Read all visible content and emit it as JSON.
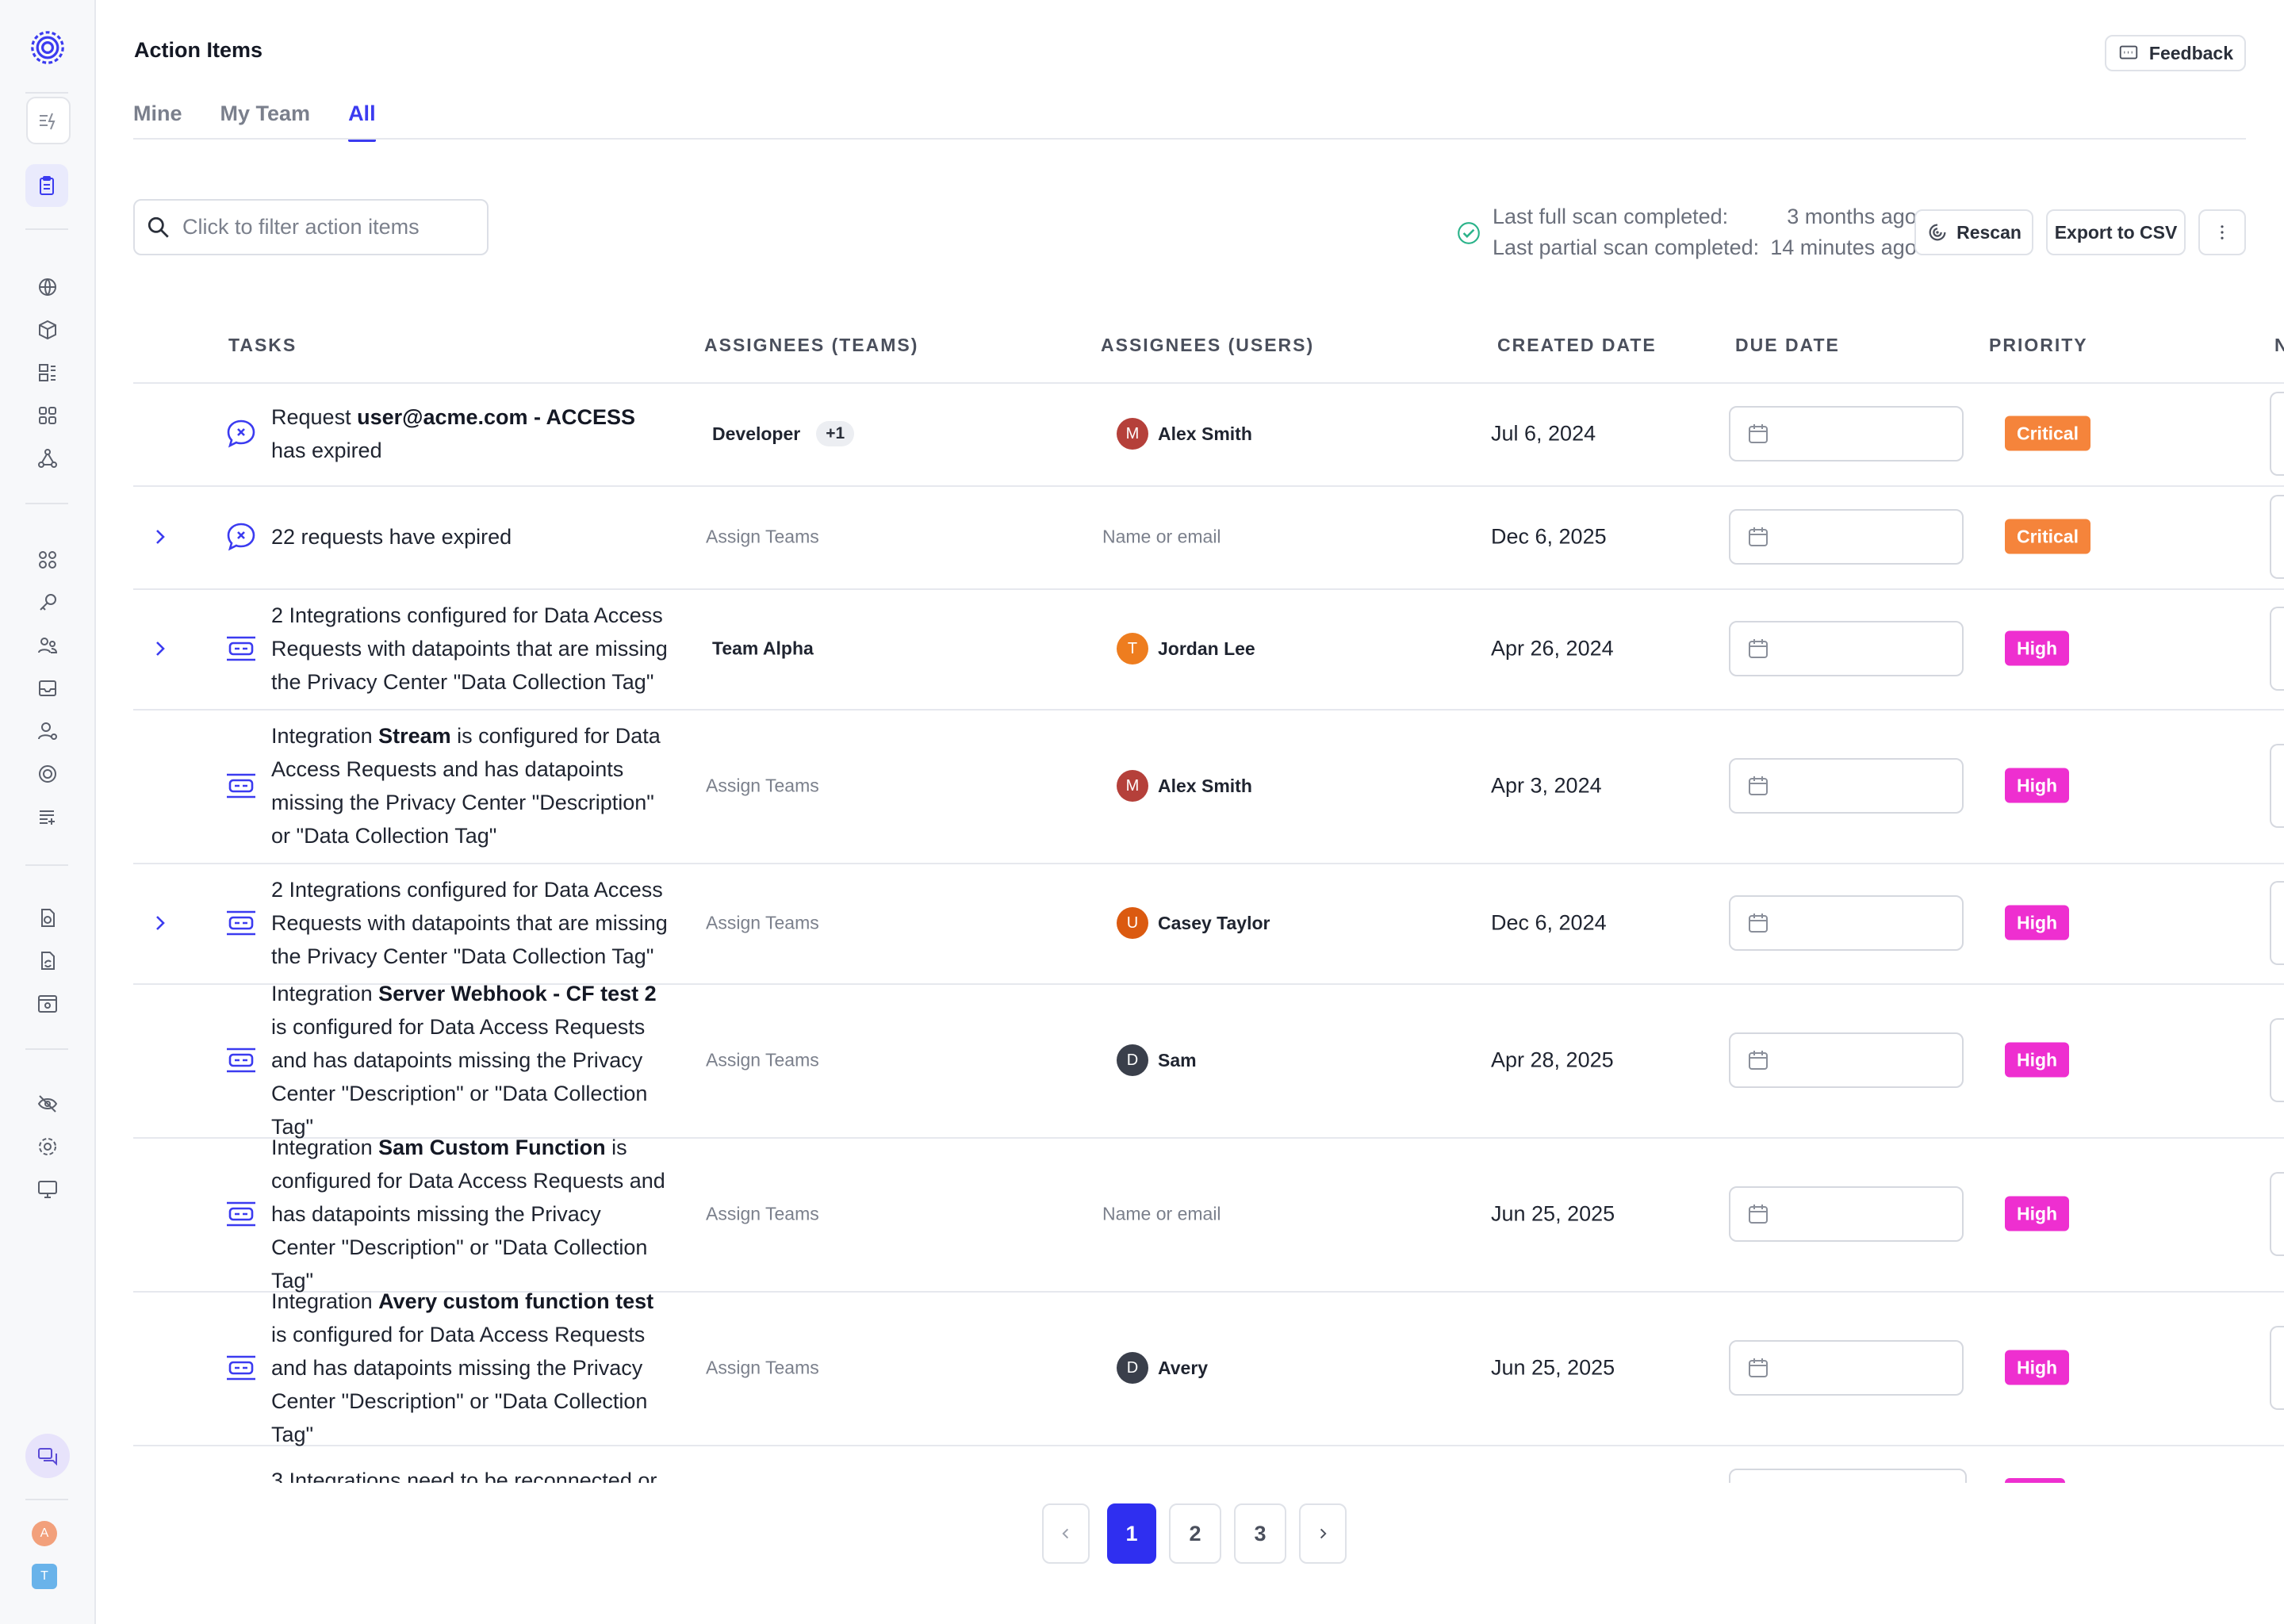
{
  "app": {
    "title": "Action Items",
    "feedback_label": "Feedback"
  },
  "tabs": [
    {
      "label": "Mine",
      "active": false
    },
    {
      "label": "My Team",
      "active": false
    },
    {
      "label": "All",
      "active": true
    }
  ],
  "search": {
    "placeholder": "Click to filter action items"
  },
  "scan": {
    "full_label": "Last full scan completed:",
    "full_value": "3 months ago",
    "partial_label": "Last partial scan completed:",
    "partial_value": "14 minutes ago"
  },
  "toolbar": {
    "rescan_label": "Rescan",
    "export_label": "Export to CSV"
  },
  "columns": [
    "TASKS",
    "ASSIGNEES (TEAMS)",
    "ASSIGNEES (USERS)",
    "CREATED DATE",
    "DUE DATE",
    "PRIORITY",
    "N"
  ],
  "rows": [
    {
      "expandable": false,
      "icon": "request-icon",
      "task_parts": [
        [
          "Request ",
          false
        ],
        [
          "user@acme.com - ACCESS",
          true
        ],
        [
          " has expired",
          false
        ]
      ],
      "team": "Developer",
      "team_more": "+1",
      "user": {
        "name": "Alex Smith",
        "initial": "M",
        "color": "#b5403a"
      },
      "created": "Jul 6, 2024",
      "priority": "Critical"
    },
    {
      "expandable": true,
      "icon": "request-icon",
      "task_parts": [
        [
          "22 requests have expired",
          false
        ]
      ],
      "team": null,
      "team_placeholder": "Assign Teams",
      "user": null,
      "user_placeholder": "Name or email",
      "created": "Dec 6, 2025",
      "priority": "Critical"
    },
    {
      "expandable": true,
      "icon": "integration-icon",
      "task_parts": [
        [
          "2 Integrations configured for Data Access Requests with datapoints that are missing the Privacy Center \"Data Collection Tag\"",
          false
        ]
      ],
      "team": "Team Alpha",
      "user": {
        "name": "Jordan Lee",
        "initial": "T",
        "color": "#ee7d1f"
      },
      "created": "Apr 26, 2024",
      "priority": "High"
    },
    {
      "expandable": false,
      "icon": "integration-icon",
      "task_parts": [
        [
          "Integration ",
          false
        ],
        [
          "Stream",
          true
        ],
        [
          " is configured for Data Access Requests and has datapoints missing the Privacy Center \"Description\" or \"Data Collection Tag\"",
          false
        ]
      ],
      "team": null,
      "team_placeholder": "Assign Teams",
      "user": {
        "name": "Alex Smith",
        "initial": "M",
        "color": "#b5403a"
      },
      "created": "Apr 3, 2024",
      "priority": "High"
    },
    {
      "expandable": true,
      "icon": "integration-icon",
      "task_parts": [
        [
          "2 Integrations configured for Data Access Requests with datapoints that are missing the Privacy Center \"Data Collection Tag\"",
          false
        ]
      ],
      "team": null,
      "team_placeholder": "Assign Teams",
      "user": {
        "name": "Casey Taylor",
        "initial": "U",
        "color": "#db5a10"
      },
      "created": "Dec 6, 2024",
      "priority": "High"
    },
    {
      "expandable": false,
      "icon": "integration-icon",
      "task_parts": [
        [
          "Integration ",
          false
        ],
        [
          "Server Webhook - CF test 2",
          true
        ],
        [
          " is configured for Data Access Requests and has datapoints missing the Privacy Center \"Description\" or \"Data Collection Tag\"",
          false
        ]
      ],
      "team": null,
      "team_placeholder": "Assign Teams",
      "user": {
        "name": "Sam",
        "initial": "D",
        "color": "#3a3f4b"
      },
      "created": "Apr 28, 2025",
      "priority": "High"
    },
    {
      "expandable": false,
      "icon": "integration-icon",
      "task_parts": [
        [
          "Integration ",
          false
        ],
        [
          "Sam Custom Function",
          true
        ],
        [
          " is configured for Data Access Requests and has datapoints missing the Privacy Center \"Description\" or \"Data Collection Tag\"",
          false
        ]
      ],
      "team": null,
      "team_placeholder": "Assign Teams",
      "user": null,
      "user_placeholder": "Name or email",
      "created": "Jun 25, 2025",
      "priority": "High"
    },
    {
      "expandable": false,
      "icon": "integration-icon",
      "task_parts": [
        [
          "Integration ",
          false
        ],
        [
          "Avery custom function test",
          true
        ],
        [
          " is configured for Data Access Requests and has datapoints missing the Privacy Center \"Description\" or \"Data Collection Tag\"",
          false
        ]
      ],
      "team": null,
      "team_placeholder": "Assign Teams",
      "user": {
        "name": "Avery",
        "initial": "D",
        "color": "#3a3f4b"
      },
      "created": "Jun 25, 2025",
      "priority": "High"
    }
  ],
  "clipped_row_text": "3 Integrations need to be reconnected or",
  "pagination": {
    "pages": [
      "1",
      "2",
      "3"
    ],
    "current": "1"
  },
  "rail_avatars": [
    {
      "initial": "A",
      "color": "#f2a07b"
    },
    {
      "initial": "T",
      "color": "#69b3ea"
    }
  ],
  "colors": {
    "accent": "#3b3bf0",
    "critical": "#f5843b",
    "high": "#ee2fd0",
    "success": "#2bb38a"
  }
}
